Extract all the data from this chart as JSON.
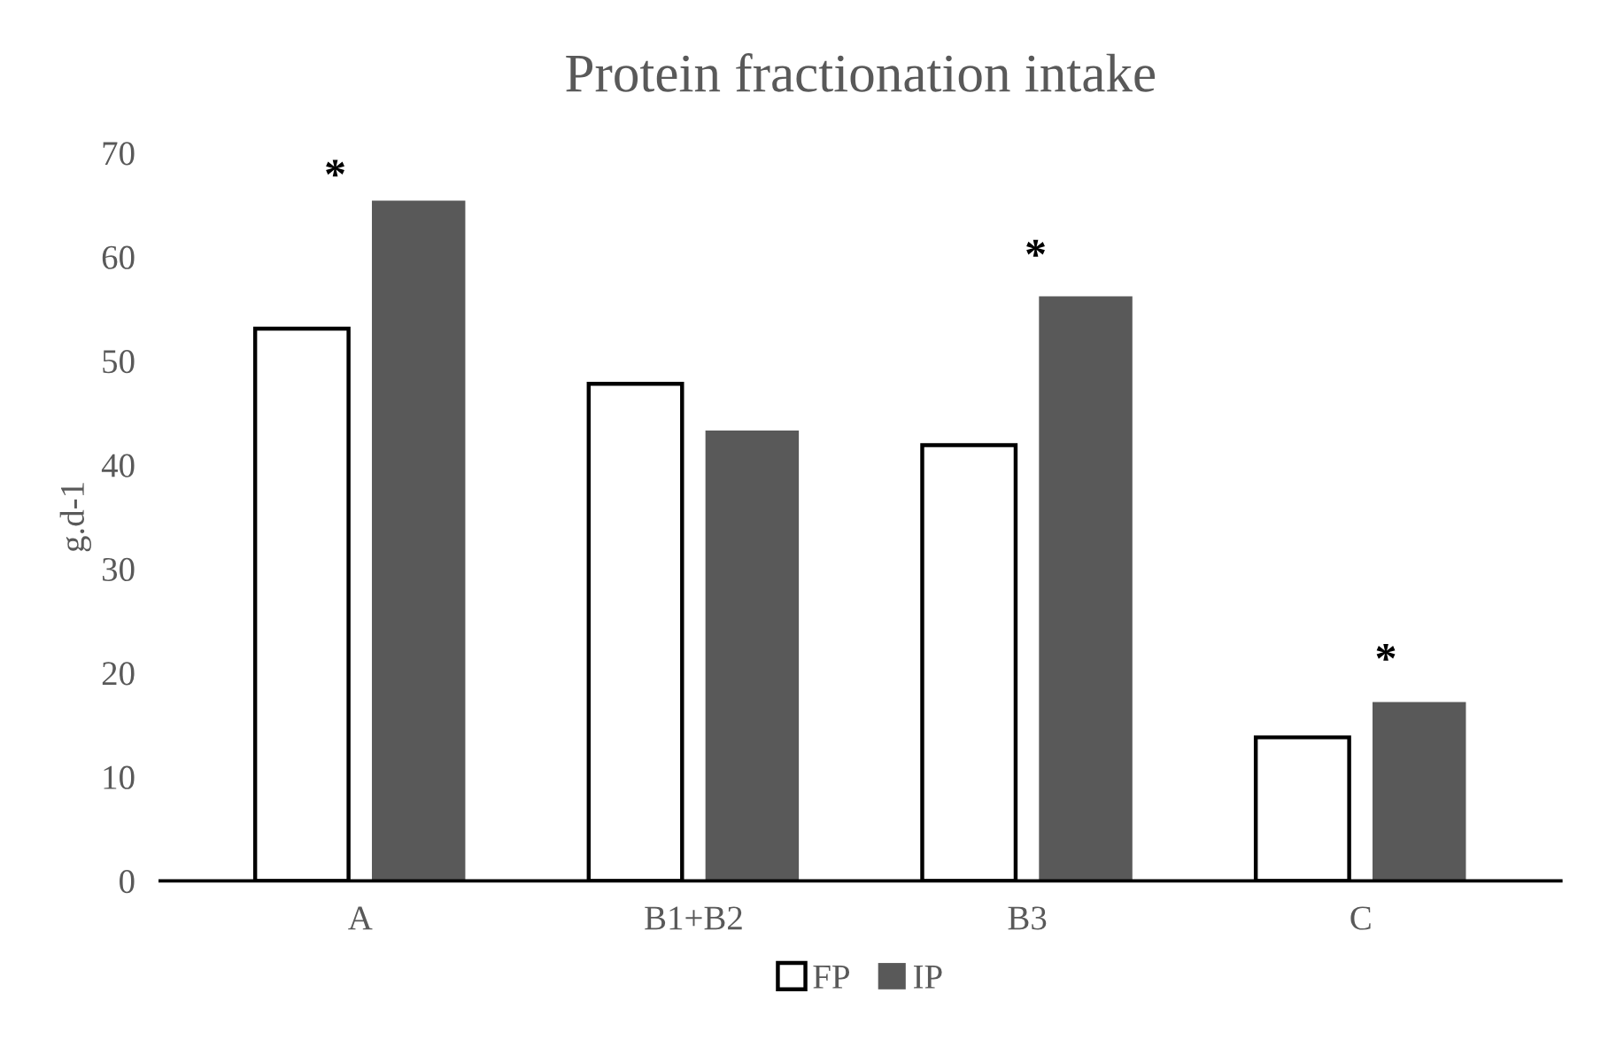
{
  "chart_data": {
    "type": "bar",
    "title": "Protein fractionation intake",
    "ylabel": "g.d-1",
    "categories": [
      "A",
      "B1+B2",
      "B3",
      "C"
    ],
    "series": [
      {
        "name": "FP",
        "color": "#ffffff",
        "values": [
          53.1,
          47.8,
          41.9,
          13.8
        ]
      },
      {
        "name": "IP",
        "color": "#595959",
        "values": [
          65.4,
          43.3,
          56.2,
          17.2
        ]
      }
    ],
    "ylim": [
      0,
      70
    ],
    "yticks": [
      0,
      10,
      20,
      30,
      40,
      50,
      60,
      70
    ],
    "grid": false,
    "legend": "bottom",
    "annotations": [
      "*",
      "*",
      "*"
    ]
  }
}
